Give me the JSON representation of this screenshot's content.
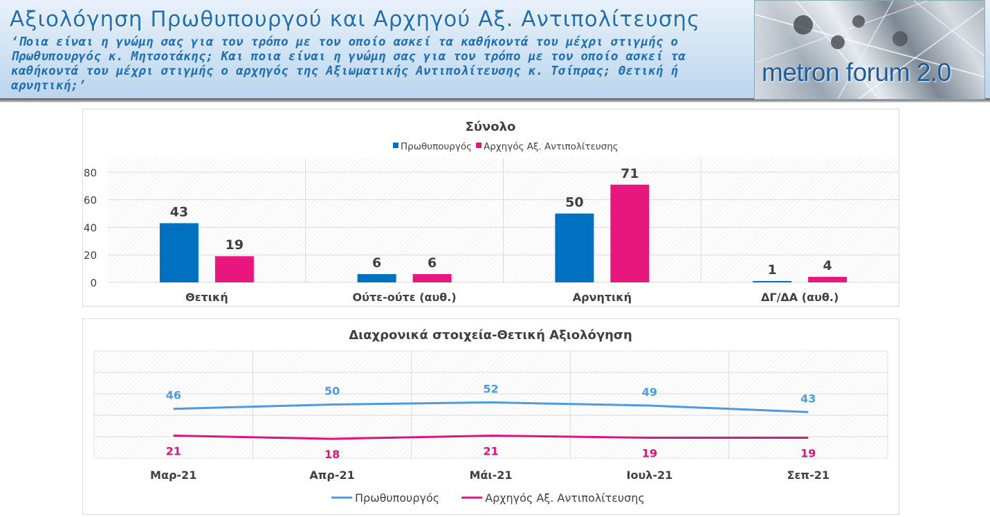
{
  "header": {
    "title": "Αξιολόγηση Πρωθυπουργού και Αρχηγού Αξ. Αντιπολίτευσης",
    "question": "‘Ποια είναι η γνώμη σας για τον τρόπο με τον οποίο ασκεί τα καθήκοντά του μέχρι στιγμής ο Πρωθυπουργός κ. Μητσοτάκης; Και ποια είναι η γνώμη σας για τον τρόπο με τον οποίο ασκεί τα καθήκοντά του μέχρι στιγμής ο αρχηγός της Αξιωματικής Αντιπολίτευσης κ. Τσίπρας; Θετική ή αρνητική;’",
    "logo_text": "metron forum 2.0"
  },
  "colors": {
    "pm_bar": "#0070c0",
    "opp_bar": "#e8177d",
    "pm_line": "#4a9be0",
    "opp_line": "#d5177f",
    "title_blue": "#1f6fb5"
  },
  "chart_data": [
    {
      "type": "bar",
      "title": "Σύνολο",
      "categories": [
        "Θετική",
        "Ούτε-ούτε (αυθ.)",
        "Αρνητική",
        "ΔΓ/ΔΑ (αυθ.)"
      ],
      "series": [
        {
          "name": "Πρωθυπουργός",
          "values": [
            43,
            6,
            50,
            1
          ]
        },
        {
          "name": "Αρχηγός Αξ. Αντιπολίτευσης",
          "values": [
            19,
            6,
            71,
            4
          ]
        }
      ],
      "yticks": [
        0,
        20,
        40,
        60,
        80
      ],
      "ylim": [
        0,
        90
      ],
      "legend": "top",
      "grid": true
    },
    {
      "type": "line",
      "title": "Διαχρονικά στοιχεία-Θετική Αξιολόγηση",
      "categories": [
        "Μαρ-21",
        "Απρ-21",
        "Μάι-21",
        "Ιουλ-21",
        "Σεπ-21"
      ],
      "series": [
        {
          "name": "Πρωθυπουργός",
          "values": [
            46,
            50,
            52,
            49,
            43
          ]
        },
        {
          "name": "Αρχηγός Αξ. Αντιπολίτευσης",
          "values": [
            21,
            18,
            21,
            19,
            19
          ]
        }
      ],
      "ylim": [
        0,
        100
      ],
      "legend": "bottom",
      "grid": true
    }
  ]
}
